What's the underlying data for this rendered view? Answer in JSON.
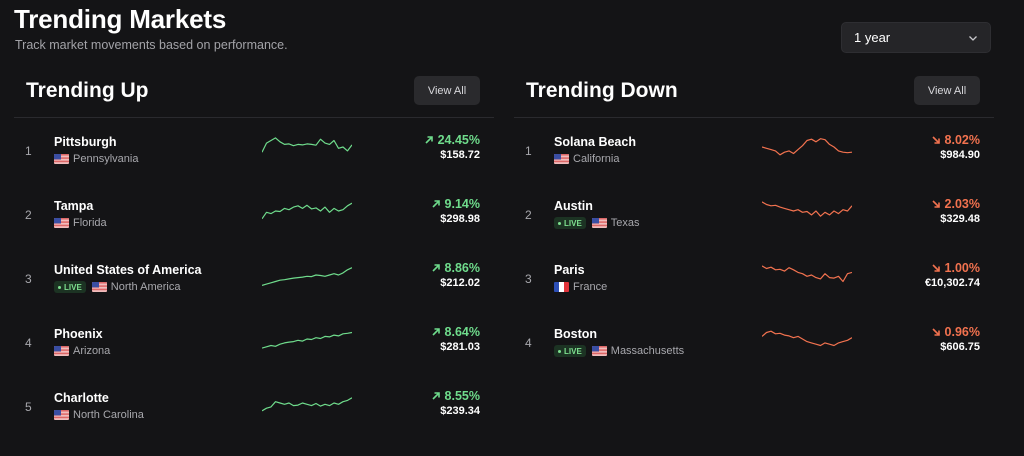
{
  "header": {
    "title": "Trending Markets",
    "subtitle": "Track market movements based on performance.",
    "period": "1 year"
  },
  "colors": {
    "up": "#6fdc8c",
    "down": "#f2724f",
    "background": "#141416"
  },
  "trending_up": {
    "title": "Trending Up",
    "view_all": "View All",
    "rows": [
      {
        "rank": "1",
        "name": "Pittsburgh",
        "region": "Pennsylvania",
        "flag": "us-flag",
        "live": false,
        "change": "24.45%",
        "price": "$158.72",
        "spark": [
          0.3,
          0.65,
          0.75,
          0.85,
          0.7,
          0.6,
          0.62,
          0.55,
          0.6,
          0.58,
          0.62,
          0.6,
          0.57,
          0.8,
          0.65,
          0.6,
          0.75,
          0.45,
          0.5,
          0.35,
          0.58
        ]
      },
      {
        "rank": "2",
        "name": "Tampa",
        "region": "Florida",
        "flag": "us-flag",
        "live": false,
        "change": "9.14%",
        "price": "$298.98",
        "spark": [
          0.2,
          0.45,
          0.4,
          0.5,
          0.48,
          0.6,
          0.55,
          0.65,
          0.7,
          0.6,
          0.72,
          0.58,
          0.62,
          0.5,
          0.65,
          0.45,
          0.6,
          0.5,
          0.55,
          0.7,
          0.8
        ]
      },
      {
        "rank": "3",
        "name": "United States of America",
        "region": "North America",
        "flag": "us-flag",
        "live": true,
        "change": "8.86%",
        "price": "$212.02",
        "spark": [
          0.1,
          0.15,
          0.2,
          0.25,
          0.3,
          0.32,
          0.35,
          0.38,
          0.4,
          0.42,
          0.45,
          0.44,
          0.5,
          0.48,
          0.45,
          0.5,
          0.55,
          0.5,
          0.58,
          0.7,
          0.78
        ]
      },
      {
        "rank": "4",
        "name": "Phoenix",
        "region": "Arizona",
        "flag": "us-flag",
        "live": false,
        "change": "8.64%",
        "price": "$281.03",
        "spark": [
          0.15,
          0.2,
          0.25,
          0.22,
          0.3,
          0.35,
          0.38,
          0.4,
          0.45,
          0.42,
          0.5,
          0.48,
          0.55,
          0.52,
          0.6,
          0.58,
          0.65,
          0.62,
          0.7,
          0.72,
          0.75
        ]
      },
      {
        "rank": "5",
        "name": "Charlotte",
        "region": "North Carolina",
        "flag": "us-flag",
        "live": false,
        "change": "8.55%",
        "price": "$239.34",
        "spark": [
          0.2,
          0.3,
          0.35,
          0.55,
          0.5,
          0.45,
          0.5,
          0.4,
          0.42,
          0.5,
          0.45,
          0.4,
          0.48,
          0.38,
          0.45,
          0.4,
          0.5,
          0.45,
          0.55,
          0.6,
          0.7
        ]
      }
    ]
  },
  "trending_down": {
    "title": "Trending Down",
    "view_all": "View All",
    "rows": [
      {
        "rank": "1",
        "name": "Solana Beach",
        "region": "California",
        "flag": "us-flag",
        "live": false,
        "change": "8.02%",
        "price": "$984.90",
        "spark": [
          0.5,
          0.45,
          0.4,
          0.35,
          0.2,
          0.3,
          0.35,
          0.25,
          0.4,
          0.55,
          0.75,
          0.8,
          0.7,
          0.82,
          0.78,
          0.6,
          0.5,
          0.35,
          0.3,
          0.28,
          0.3
        ]
      },
      {
        "rank": "2",
        "name": "Austin",
        "region": "Texas",
        "flag": "us-flag",
        "live": true,
        "change": "2.03%",
        "price": "$329.48",
        "spark": [
          0.85,
          0.75,
          0.7,
          0.72,
          0.65,
          0.6,
          0.55,
          0.5,
          0.55,
          0.45,
          0.48,
          0.35,
          0.5,
          0.3,
          0.45,
          0.35,
          0.5,
          0.4,
          0.55,
          0.5,
          0.7
        ]
      },
      {
        "rank": "3",
        "name": "Paris",
        "region": "France",
        "flag": "fr-flag",
        "live": false,
        "change": "1.00%",
        "price": "€10,302.74",
        "spark": [
          0.85,
          0.75,
          0.8,
          0.7,
          0.72,
          0.65,
          0.78,
          0.7,
          0.6,
          0.55,
          0.45,
          0.5,
          0.4,
          0.35,
          0.55,
          0.4,
          0.38,
          0.45,
          0.25,
          0.55,
          0.6
        ]
      },
      {
        "rank": "4",
        "name": "Boston",
        "region": "Massachusetts",
        "flag": "us-flag",
        "live": true,
        "change": "0.96%",
        "price": "$606.75",
        "spark": [
          0.6,
          0.75,
          0.8,
          0.7,
          0.72,
          0.65,
          0.62,
          0.55,
          0.6,
          0.5,
          0.4,
          0.35,
          0.3,
          0.25,
          0.35,
          0.3,
          0.25,
          0.35,
          0.4,
          0.45,
          0.55
        ]
      }
    ]
  }
}
